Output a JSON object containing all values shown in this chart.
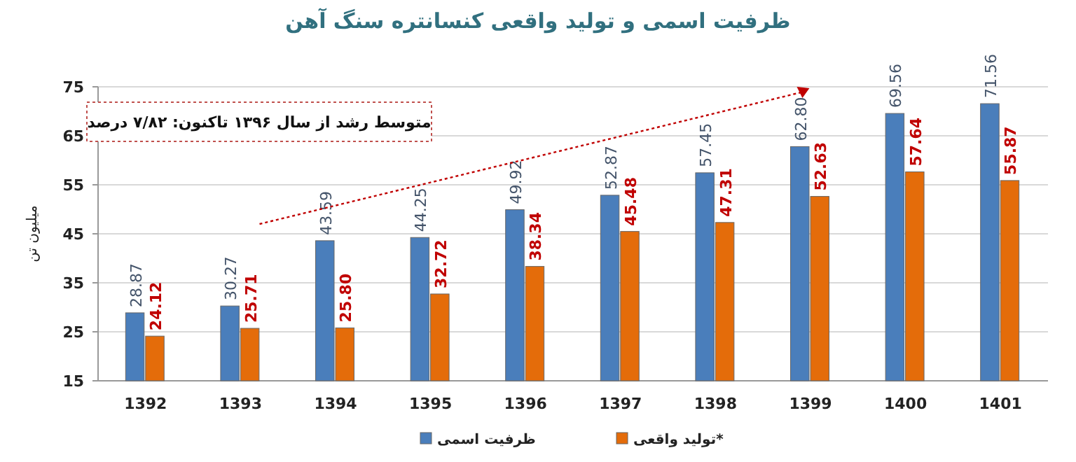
{
  "chart_data": {
    "type": "bar",
    "title": "ظرفیت اسمی و تولید واقعی کنسانتره سنگ آهن",
    "ylabel": "میلیون تن",
    "annotations": [
      "متوسط رشد از سال ۱۳۹۶ تاکنون: ۷/۸۲ درصد"
    ],
    "categories": [
      "1392",
      "1393",
      "1394",
      "1395",
      "1396",
      "1397",
      "1398",
      "1399",
      "1400",
      "1401"
    ],
    "series": [
      {
        "name": "ظرفیت اسمی",
        "color": "#4a7ebb",
        "values": [
          28.87,
          30.27,
          43.59,
          44.25,
          49.92,
          52.87,
          57.45,
          62.8,
          69.56,
          71.56
        ],
        "value_labels": [
          "28.87",
          "30.27",
          "43.59",
          "44.25",
          "49.92",
          "52.87",
          "57.45",
          "62.80",
          "69.56",
          "71.56"
        ]
      },
      {
        "name": "تولید واقعی*",
        "color": "#e46c0a",
        "values": [
          24.12,
          25.71,
          25.8,
          32.72,
          38.34,
          45.48,
          47.31,
          52.63,
          57.64,
          55.87
        ],
        "value_labels": [
          "24.12",
          "25.71",
          "25.80",
          "32.72",
          "38.34",
          "45.48",
          "47.31",
          "52.63",
          "57.64",
          "55.87"
        ]
      }
    ],
    "ylim": [
      15,
      75
    ],
    "yticks": [
      15,
      25,
      35,
      45,
      55,
      65,
      75
    ],
    "grid": "y",
    "legend": "bottom"
  }
}
